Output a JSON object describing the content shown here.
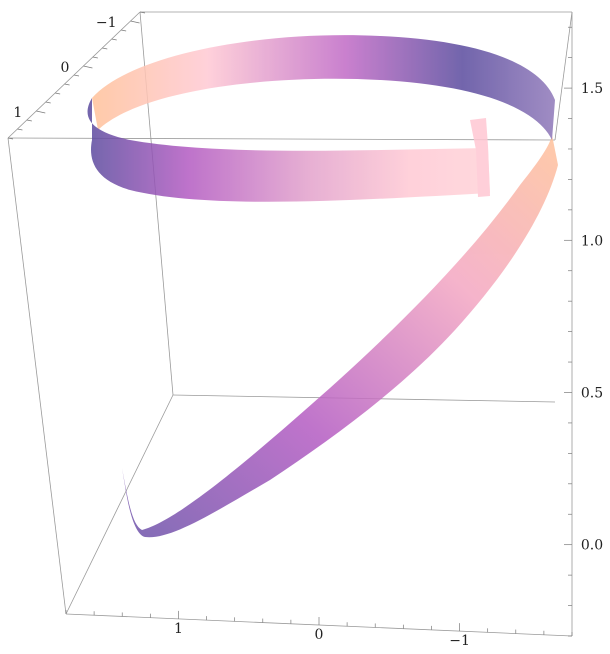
{
  "chart_data": {
    "type": "3d-surface",
    "title": "",
    "xlabel": "",
    "ylabel": "",
    "zlabel": "",
    "grid": false,
    "colors": [
      "#ffb98a",
      "#ffc9d4",
      "#f3a6c2",
      "#b35bc2",
      "#5e4fa0"
    ],
    "axes": {
      "x": {
        "range": [
          -1.8,
          1.8
        ],
        "ticks": [
          {
            "value": 1,
            "label": "1"
          },
          {
            "value": 0,
            "label": "0"
          },
          {
            "value": -1,
            "label": "−1"
          }
        ]
      },
      "y": {
        "range": [
          -1.2,
          1.6
        ],
        "ticks": [
          {
            "value": -1,
            "label": "−1"
          },
          {
            "value": 0,
            "label": "0"
          },
          {
            "value": 1,
            "label": "1"
          }
        ]
      },
      "z": {
        "range": [
          -0.3,
          1.75
        ],
        "ticks": [
          {
            "value": 0.0,
            "label": "0.0"
          },
          {
            "value": 0.5,
            "label": "0.5"
          },
          {
            "value": 1.0,
            "label": "1.0"
          },
          {
            "value": 1.5,
            "label": "1.5"
          }
        ]
      }
    },
    "surface": {
      "kind": "ribbon",
      "ribbon_height": 0.35,
      "spine": [
        {
          "x": 0.75,
          "y": 0.15,
          "z": -0.05
        },
        {
          "x": 0.55,
          "y": 0.2,
          "z": 0.0
        },
        {
          "x": 0.3,
          "y": 0.2,
          "z": 0.1
        },
        {
          "x": 0.0,
          "y": 0.2,
          "z": 0.25
        },
        {
          "x": -0.3,
          "y": 0.15,
          "z": 0.4
        },
        {
          "x": -0.6,
          "y": 0.1,
          "z": 0.55
        },
        {
          "x": -0.85,
          "y": 0.05,
          "z": 0.7
        },
        {
          "x": -1.05,
          "y": 0.0,
          "z": 0.85
        },
        {
          "x": -1.2,
          "y": -0.1,
          "z": 1.0
        },
        {
          "x": -1.3,
          "y": -0.25,
          "z": 1.12
        },
        {
          "x": -1.3,
          "y": -0.45,
          "z": 1.2
        },
        {
          "x": -1.15,
          "y": -0.65,
          "z": 1.25
        },
        {
          "x": -0.85,
          "y": -0.8,
          "z": 1.28
        },
        {
          "x": -0.45,
          "y": -0.9,
          "z": 1.3
        },
        {
          "x": 0.0,
          "y": -0.92,
          "z": 1.32
        },
        {
          "x": 0.45,
          "y": -0.85,
          "z": 1.34
        },
        {
          "x": 0.85,
          "y": -0.65,
          "z": 1.35
        },
        {
          "x": 1.1,
          "y": -0.35,
          "z": 1.36
        },
        {
          "x": 1.15,
          "y": 0.0,
          "z": 1.37
        },
        {
          "x": 1.0,
          "y": 0.35,
          "z": 1.38
        },
        {
          "x": 0.7,
          "y": 0.65,
          "z": 1.39
        },
        {
          "x": 0.3,
          "y": 0.85,
          "z": 1.39
        },
        {
          "x": -0.15,
          "y": 0.92,
          "z": 1.4
        },
        {
          "x": -0.6,
          "y": 0.85,
          "z": 1.4
        },
        {
          "x": -0.95,
          "y": 0.65,
          "z": 1.4
        }
      ]
    }
  }
}
